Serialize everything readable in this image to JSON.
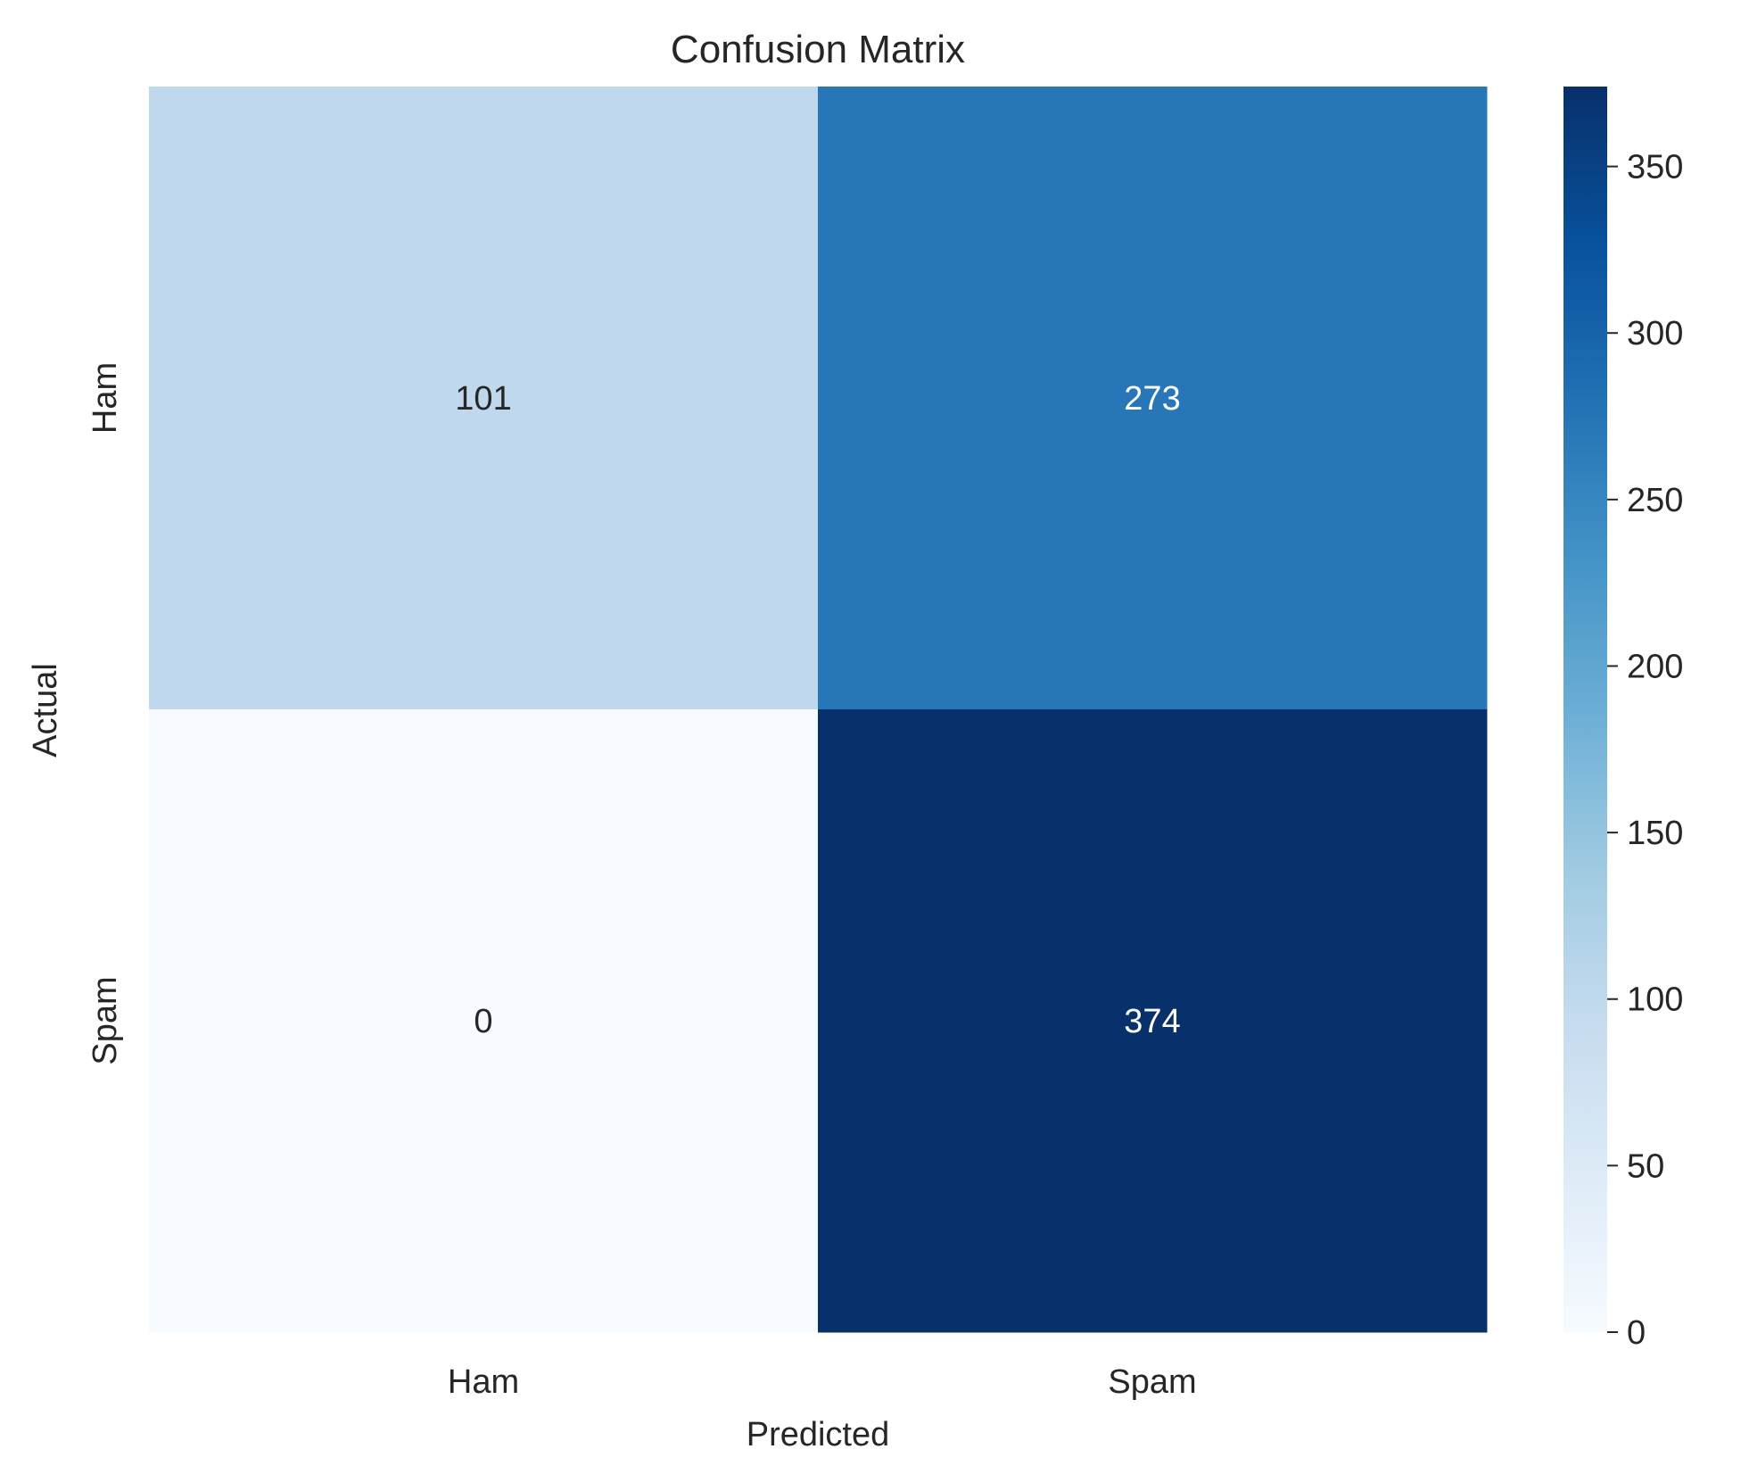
{
  "chart_data": {
    "type": "heatmap",
    "title": "Confusion Matrix",
    "xlabel": "Predicted",
    "ylabel": "Actual",
    "x_categories": [
      "Ham",
      "Spam"
    ],
    "y_categories": [
      "Ham",
      "Spam"
    ],
    "values": [
      [
        101,
        273
      ],
      [
        0,
        374
      ]
    ],
    "annotations": [
      [
        "101",
        "273"
      ],
      [
        "0",
        "374"
      ]
    ],
    "colormap": "Blues",
    "color_range": [
      0,
      374
    ],
    "colorbar": {
      "ticks": [
        0,
        50,
        100,
        150,
        200,
        250,
        300,
        350
      ],
      "tick_labels": [
        "0",
        "50",
        "100",
        "150",
        "200",
        "250",
        "300",
        "350"
      ]
    },
    "grid": false
  }
}
